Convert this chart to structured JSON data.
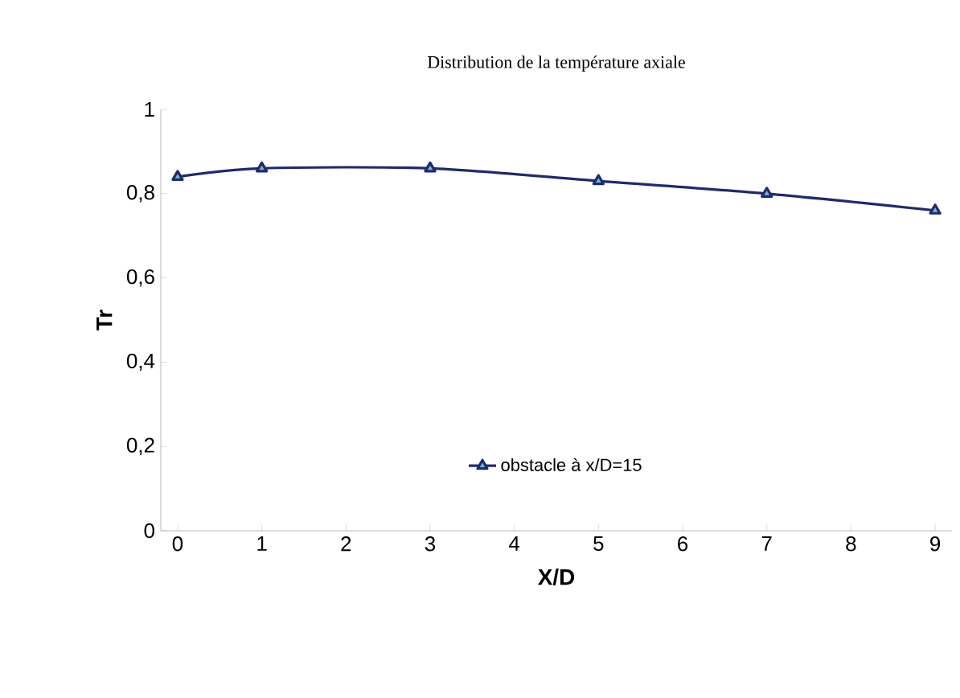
{
  "chart_data": {
    "type": "line",
    "title": "Distribution de la température axiale",
    "xlabel": "X/D",
    "ylabel": "Tr",
    "x": [
      0,
      1,
      3,
      5,
      7,
      9
    ],
    "series": [
      {
        "name": "obstacle à x/D=15",
        "color": "#1f2a6e",
        "values": [
          0.84,
          0.86,
          0.86,
          0.83,
          0.8,
          0.76
        ]
      }
    ],
    "xlim": [
      -0.2,
      9.2
    ],
    "xticks": [
      0,
      1,
      2,
      3,
      4,
      5,
      6,
      7,
      8,
      9
    ],
    "ylim": [
      0,
      1
    ],
    "yticks": [
      0,
      {
        "value": 0.2,
        "label": "0,2"
      },
      {
        "value": 0.4,
        "label": "0,4"
      },
      {
        "value": 0.6,
        "label": "0,6"
      },
      {
        "value": 0.8,
        "label": "0,8"
      },
      1
    ],
    "grid": false,
    "legend": "bottom",
    "marker": "triangle",
    "line_style": "solid"
  }
}
